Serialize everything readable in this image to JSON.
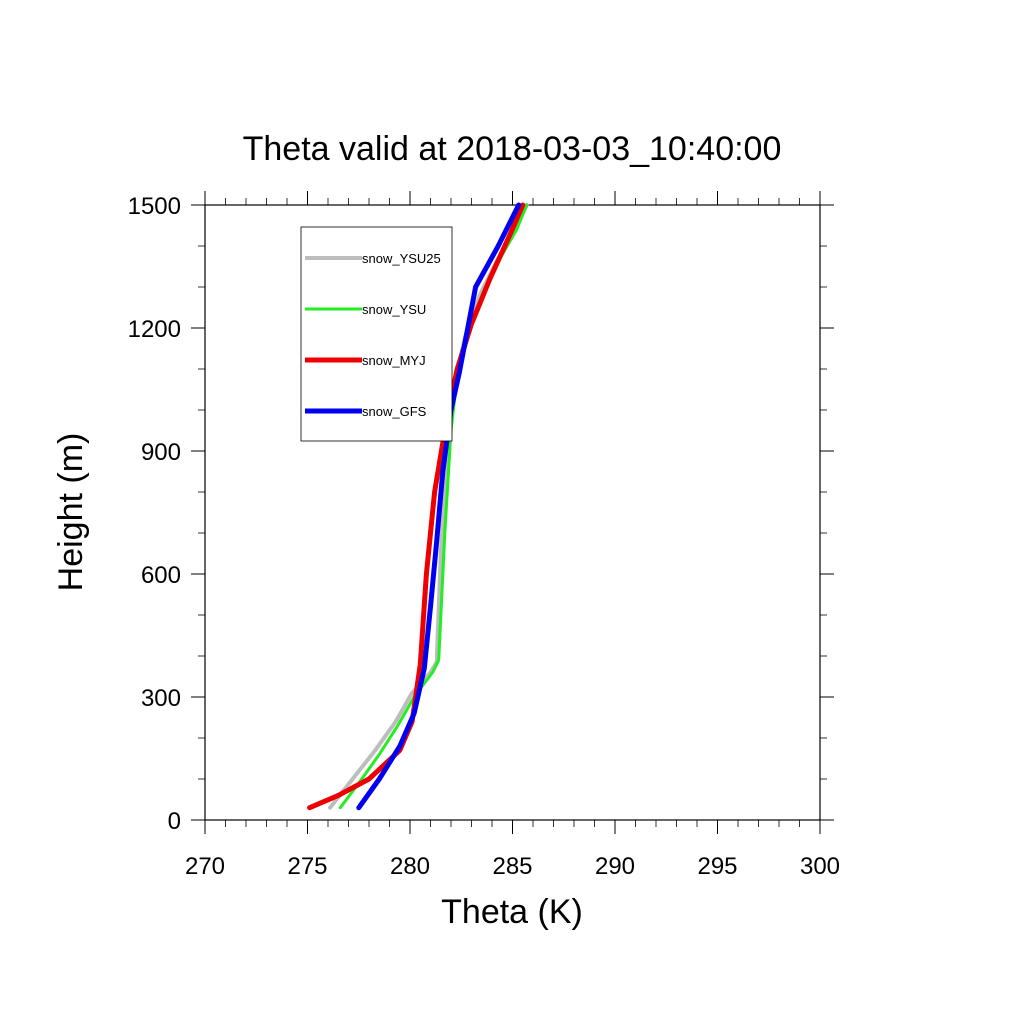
{
  "chart_data": {
    "type": "line",
    "title": "Theta valid at 2018-03-03_10:40:00",
    "xlabel": "Theta (K)",
    "ylabel": "Height (m)",
    "xlim": [
      270,
      300
    ],
    "ylim": [
      0,
      1500
    ],
    "xticks": [
      270,
      275,
      280,
      285,
      290,
      295,
      300
    ],
    "xtick_labels": [
      "270",
      "275",
      "280",
      "285",
      "290",
      "295",
      "300"
    ],
    "yticks": [
      0,
      300,
      600,
      900,
      1200,
      1500
    ],
    "ytick_labels": [
      "0",
      "300",
      "600",
      "900",
      "1200",
      "1500"
    ],
    "grid": false,
    "legend": "top-left",
    "series": [
      {
        "name": "snow_YSU25",
        "color": "#bdbdbd",
        "x": [
          276.1,
          277.2,
          278.3,
          279.3,
          280.1,
          281.0,
          281.3,
          281.5,
          281.8,
          282.1,
          282.7,
          283.4,
          284.2,
          285.1,
          285.7
        ],
        "y": [
          30,
          100,
          170,
          240,
          310,
          360,
          385,
          650,
          900,
          1050,
          1180,
          1280,
          1360,
          1440,
          1500
        ]
      },
      {
        "name": "snow_YSU",
        "color": "#22ee22",
        "x": [
          276.6,
          277.5,
          278.5,
          279.4,
          280.2,
          281.1,
          281.4,
          281.7,
          282.0,
          282.3,
          282.9,
          283.6,
          284.4,
          285.2,
          285.7
        ],
        "y": [
          30,
          90,
          160,
          230,
          300,
          360,
          390,
          700,
          950,
          1080,
          1190,
          1290,
          1370,
          1440,
          1500
        ]
      },
      {
        "name": "snow_MYJ",
        "color": "#ee0000",
        "x": [
          275.1,
          276.5,
          278.0,
          279.5,
          280.1,
          280.5,
          280.8,
          281.2,
          281.8,
          282.3,
          283.0,
          283.9,
          284.9,
          285.5
        ],
        "y": [
          30,
          60,
          100,
          170,
          240,
          380,
          600,
          800,
          980,
          1100,
          1210,
          1320,
          1430,
          1500
        ]
      },
      {
        "name": "snow_GFS",
        "color": "#0000ee",
        "x": [
          277.5,
          278.5,
          279.5,
          280.2,
          280.7,
          281.0,
          281.3,
          281.6,
          282.0,
          282.4,
          283.2,
          284.3,
          285.3
        ],
        "y": [
          30,
          100,
          180,
          260,
          370,
          520,
          680,
          850,
          1000,
          1090,
          1300,
          1400,
          1500
        ]
      }
    ]
  }
}
